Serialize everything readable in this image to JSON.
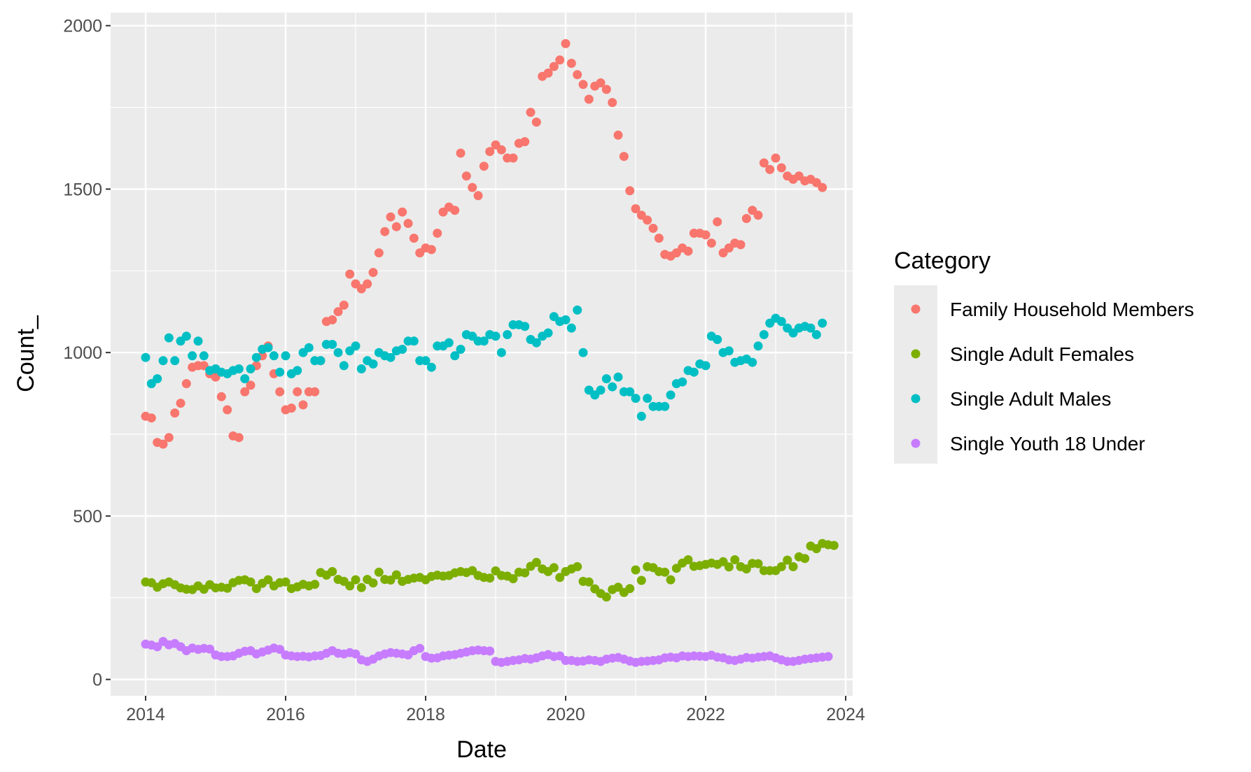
{
  "chart_data": {
    "type": "scatter",
    "title": "",
    "xlabel": "Date",
    "ylabel": "Count_",
    "xlim": [
      2013.5,
      2024.1
    ],
    "ylim": [
      -50,
      2040
    ],
    "x_ticks": [
      "2014",
      "2016",
      "2018",
      "2020",
      "2022",
      "2024"
    ],
    "y_ticks": [
      "0",
      "500",
      "1000",
      "1500",
      "2000"
    ],
    "grid": true,
    "legend": {
      "title": "Category",
      "position": "right"
    },
    "series": [
      {
        "name": "Family Household Members",
        "color": "#F8766D",
        "start": 2014.0,
        "step_months": 1,
        "values": [
          805,
          800,
          725,
          720,
          740,
          815,
          845,
          905,
          955,
          960,
          960,
          935,
          925,
          865,
          825,
          745,
          740,
          880,
          900,
          960,
          990,
          1020,
          935,
          880,
          825,
          830,
          880,
          840,
          880,
          880,
          975,
          1095,
          1100,
          1125,
          1145,
          1240,
          1210,
          1195,
          1210,
          1245,
          1305,
          1370,
          1415,
          1385,
          1430,
          1395,
          1350,
          1305,
          1320,
          1315,
          1365,
          1430,
          1445,
          1435,
          1610,
          1540,
          1505,
          1480,
          1570,
          1615,
          1635,
          1620,
          1595,
          1595,
          1640,
          1645,
          1735,
          1705,
          1845,
          1855,
          1875,
          1895,
          1945,
          1885,
          1850,
          1820,
          1775,
          1815,
          1825,
          1805,
          1765,
          1665,
          1600,
          1495,
          1440,
          1420,
          1405,
          1380,
          1350,
          1300,
          1295,
          1305,
          1320,
          1310,
          1365,
          1365,
          1360,
          1335,
          1400,
          1305,
          1320,
          1335,
          1330,
          1410,
          1435,
          1420,
          1580,
          1560,
          1595,
          1565,
          1540,
          1530,
          1540,
          1525,
          1530,
          1520,
          1505
        ]
      },
      {
        "name": "Single Adult Females",
        "color": "#7CAE00",
        "start": 2014.0,
        "step_months": 1,
        "values": [
          298,
          296,
          282,
          293,
          298,
          290,
          280,
          276,
          275,
          286,
          276,
          290,
          280,
          282,
          279,
          296,
          303,
          305,
          298,
          278,
          294,
          305,
          286,
          296,
          298,
          278,
          283,
          291,
          286,
          291,
          327,
          319,
          330,
          306,
          300,
          286,
          305,
          281,
          306,
          295,
          328,
          306,
          304,
          320,
          300,
          306,
          310,
          312,
          305,
          315,
          319,
          316,
          318,
          326,
          330,
          327,
          333,
          318,
          312,
          310,
          332,
          318,
          316,
          308,
          328,
          326,
          346,
          358,
          338,
          330,
          342,
          312,
          330,
          338,
          345,
          300,
          298,
          277,
          263,
          252,
          275,
          282,
          266,
          278,
          335,
          303,
          345,
          342,
          330,
          328,
          305,
          340,
          356,
          366,
          346,
          348,
          352,
          356,
          352,
          360,
          344,
          366,
          345,
          338,
          355,
          354,
          333,
          333,
          333,
          345,
          365,
          345,
          375,
          370,
          408,
          400,
          416,
          412,
          410
        ]
      },
      {
        "name": "Single Adult Males",
        "color": "#00BFC4",
        "start": 2014.0,
        "step_months": 1,
        "values": [
          985,
          905,
          920,
          975,
          1045,
          975,
          1035,
          1050,
          990,
          1035,
          990,
          945,
          950,
          940,
          935,
          945,
          950,
          920,
          950,
          985,
          1010,
          1015,
          990,
          940,
          990,
          935,
          945,
          1000,
          1015,
          975,
          975,
          1025,
          1025,
          1000,
          960,
          1005,
          1020,
          950,
          975,
          965,
          1000,
          990,
          985,
          1005,
          1010,
          1035,
          1035,
          975,
          975,
          955,
          1020,
          1020,
          1030,
          990,
          1010,
          1055,
          1050,
          1035,
          1035,
          1055,
          1050,
          1000,
          1055,
          1085,
          1085,
          1080,
          1040,
          1030,
          1050,
          1060,
          1110,
          1095,
          1100,
          1075,
          1130,
          1000,
          885,
          870,
          885,
          920,
          895,
          925,
          880,
          880,
          860,
          805,
          860,
          835,
          835,
          835,
          870,
          905,
          910,
          945,
          940,
          965,
          960,
          1050,
          1040,
          1000,
          1005,
          970,
          975,
          980,
          970,
          1020,
          1055,
          1090,
          1105,
          1095,
          1075,
          1060,
          1075,
          1080,
          1075,
          1055,
          1090
        ]
      },
      {
        "name": "Single Youth 18 Under",
        "color": "#C77CFF",
        "start": 2014.0,
        "step_months": 1,
        "values": [
          108,
          105,
          100,
          116,
          106,
          110,
          100,
          88,
          96,
          92,
          95,
          93,
          75,
          70,
          70,
          72,
          80,
          86,
          88,
          78,
          84,
          90,
          96,
          92,
          75,
          72,
          70,
          71,
          69,
          72,
          73,
          80,
          88,
          80,
          78,
          82,
          78,
          60,
          55,
          62,
          72,
          78,
          82,
          80,
          78,
          75,
          88,
          95,
          70,
          65,
          66,
          72,
          74,
          76,
          80,
          84,
          88,
          90,
          88,
          87,
          55,
          52,
          55,
          58,
          60,
          64,
          62,
          66,
          72,
          76,
          70,
          72,
          58,
          58,
          55,
          56,
          60,
          58,
          55,
          62,
          65,
          67,
          62,
          56,
          52,
          55,
          56,
          58,
          60,
          66,
          68,
          66,
          72,
          70,
          72,
          71,
          70,
          74,
          68,
          66,
          60,
          58,
          62,
          67,
          65,
          68,
          70,
          72,
          66,
          60,
          55,
          55,
          58,
          62,
          64,
          66,
          68,
          70
        ]
      }
    ]
  }
}
